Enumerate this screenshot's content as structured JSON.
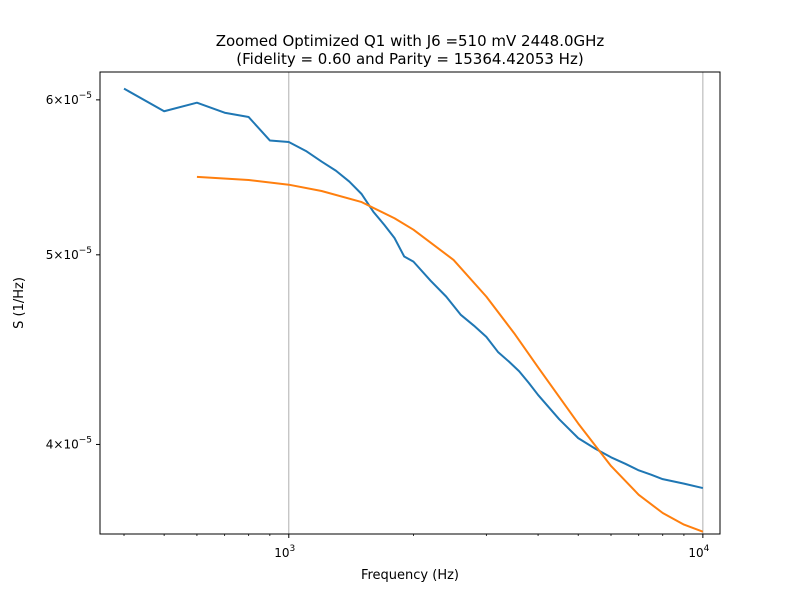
{
  "chart_data": {
    "type": "line",
    "title_line1": "Zoomed Optimized Q1 with J6 =510 mV 2448.0GHz",
    "title_line2": "(Fidelity = 0.60 and Parity = 15364.42053 Hz)",
    "xlabel": "Frequency (Hz)",
    "ylabel": "S (1/Hz)",
    "xscale": "log",
    "yscale": "log",
    "xlim": [
      350,
      11000
    ],
    "ylim": [
      3.6e-05,
      6.2e-05
    ],
    "x_ticks": [
      {
        "value": 1000,
        "base": "10",
        "exp": "3"
      },
      {
        "value": 10000,
        "base": "10",
        "exp": "4"
      }
    ],
    "y_ticks": [
      {
        "value": 4e-05,
        "mant": "4",
        "base": "×10",
        "exp": "−5"
      },
      {
        "value": 5e-05,
        "mant": "5",
        "base": "×10",
        "exp": "−5"
      },
      {
        "value": 6e-05,
        "mant": "6",
        "base": "×10",
        "exp": "−5"
      }
    ],
    "grid": "x-major-only",
    "legend": "none",
    "series": [
      {
        "color": "#1f77b4",
        "x": [
          400,
          500,
          600,
          700,
          800,
          900,
          1000,
          1100,
          1200,
          1300,
          1400,
          1500,
          1600,
          1700,
          1800,
          1900,
          2000,
          2200,
          2400,
          2600,
          2800,
          3000,
          3200,
          3400,
          3600,
          3800,
          4000,
          4500,
          5000,
          5500,
          6000,
          6500,
          7000,
          7500,
          8000,
          9000,
          10000
        ],
        "y": [
          6.08e-05,
          5.92e-05,
          5.98e-05,
          5.91e-05,
          5.88e-05,
          5.72e-05,
          5.71e-05,
          5.65e-05,
          5.58e-05,
          5.52e-05,
          5.45e-05,
          5.37e-05,
          5.26e-05,
          5.18e-05,
          5.1e-05,
          4.99e-05,
          4.96e-05,
          4.85e-05,
          4.76e-05,
          4.66e-05,
          4.6e-05,
          4.54e-05,
          4.46e-05,
          4.41e-05,
          4.36e-05,
          4.3e-05,
          4.24e-05,
          4.12e-05,
          4.03e-05,
          3.98e-05,
          3.94e-05,
          3.91e-05,
          3.88e-05,
          3.86e-05,
          3.84e-05,
          3.82e-05,
          3.8e-05
        ]
      },
      {
        "color": "#ff7f0e",
        "x": [
          600,
          800,
          1000,
          1200,
          1500,
          1800,
          2000,
          2500,
          3000,
          3500,
          4000,
          5000,
          6000,
          7000,
          8000,
          9000,
          10000
        ],
        "y": [
          5.48e-05,
          5.46e-05,
          5.43e-05,
          5.39e-05,
          5.32e-05,
          5.22e-05,
          5.15e-05,
          4.97e-05,
          4.76e-05,
          4.56e-05,
          4.38e-05,
          4.1e-05,
          3.9e-05,
          3.77e-05,
          3.69e-05,
          3.64e-05,
          3.61e-05
        ]
      }
    ]
  }
}
